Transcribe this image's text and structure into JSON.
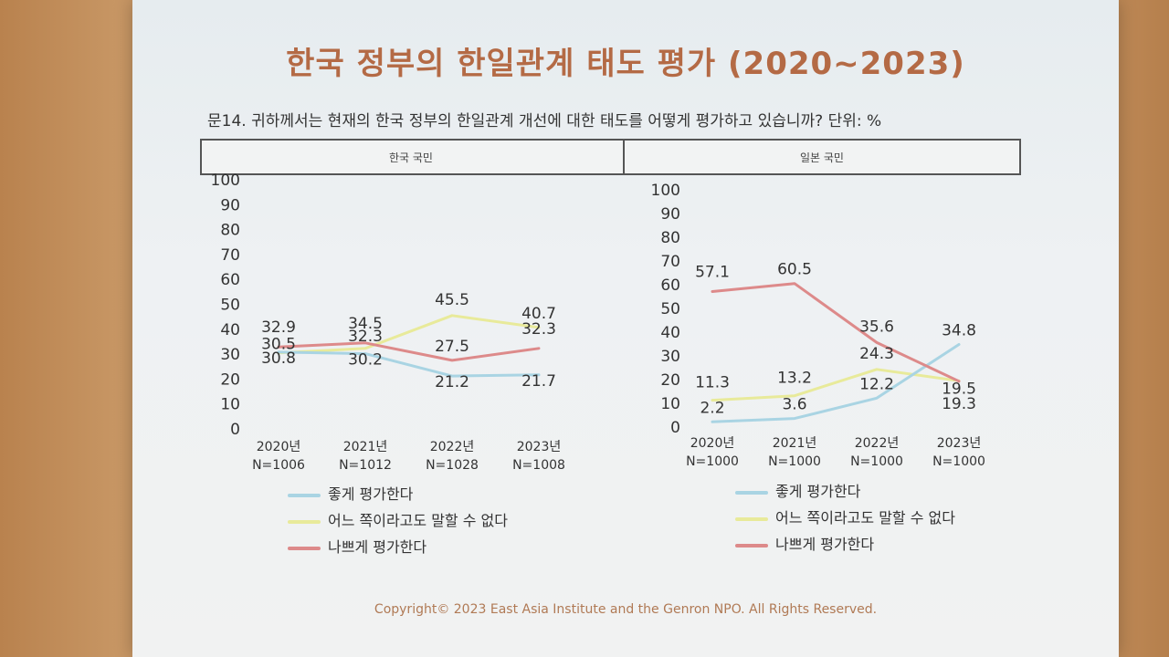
{
  "slide": {
    "title": "한국 정부의 한일관계 태도 평가 (2020~2023)",
    "question": "문14. 귀하께서는 현재의 한국 정부의 한일관계 개선에 대한 태도를 어떻게 평가하고 있습니까?   단위: %",
    "copyright": "Copyright© 2023 East Asia Institute and the Genron NPO. All Rights Reserved."
  },
  "colors": {
    "good": "#a9d4e3",
    "neutral": "#e8ea9a",
    "bad": "#dd8a8a"
  },
  "chart_data": [
    {
      "type": "line",
      "panel_label": "한국 국민",
      "categories": [
        "2020년",
        "2021년",
        "2022년",
        "2023년"
      ],
      "category_n": [
        "N=1006",
        "N=1012",
        "N=1028",
        "N=1008"
      ],
      "ylim": [
        0,
        100
      ],
      "yticks": [
        0,
        10,
        20,
        30,
        40,
        50,
        60,
        70,
        80,
        90,
        100
      ],
      "series": [
        {
          "name": "좋게 평가한다",
          "key": "good",
          "values": [
            30.8,
            30.2,
            21.2,
            21.7
          ]
        },
        {
          "name": "어느 쪽이라고도 말할 수 없다",
          "key": "neutral",
          "values": [
            30.5,
            32.3,
            45.5,
            40.7
          ]
        },
        {
          "name": "나쁘게 평가한다",
          "key": "bad",
          "values": [
            32.9,
            34.5,
            27.5,
            32.3
          ]
        }
      ]
    },
    {
      "type": "line",
      "panel_label": "일본 국민",
      "categories": [
        "2020년",
        "2021년",
        "2022년",
        "2023년"
      ],
      "category_n": [
        "N=1000",
        "N=1000",
        "N=1000",
        "N=1000"
      ],
      "ylim": [
        0,
        100
      ],
      "yticks": [
        0,
        10,
        20,
        30,
        40,
        50,
        60,
        70,
        80,
        90,
        100
      ],
      "series": [
        {
          "name": "좋게 평가한다",
          "key": "good",
          "values": [
            2.2,
            3.6,
            12.2,
            34.8
          ]
        },
        {
          "name": "어느 쪽이라고도 말할 수 없다",
          "key": "neutral",
          "values": [
            11.3,
            13.2,
            24.3,
            19.5
          ]
        },
        {
          "name": "나쁘게 평가한다",
          "key": "bad",
          "values": [
            57.1,
            60.5,
            35.6,
            19.3
          ]
        }
      ]
    }
  ]
}
